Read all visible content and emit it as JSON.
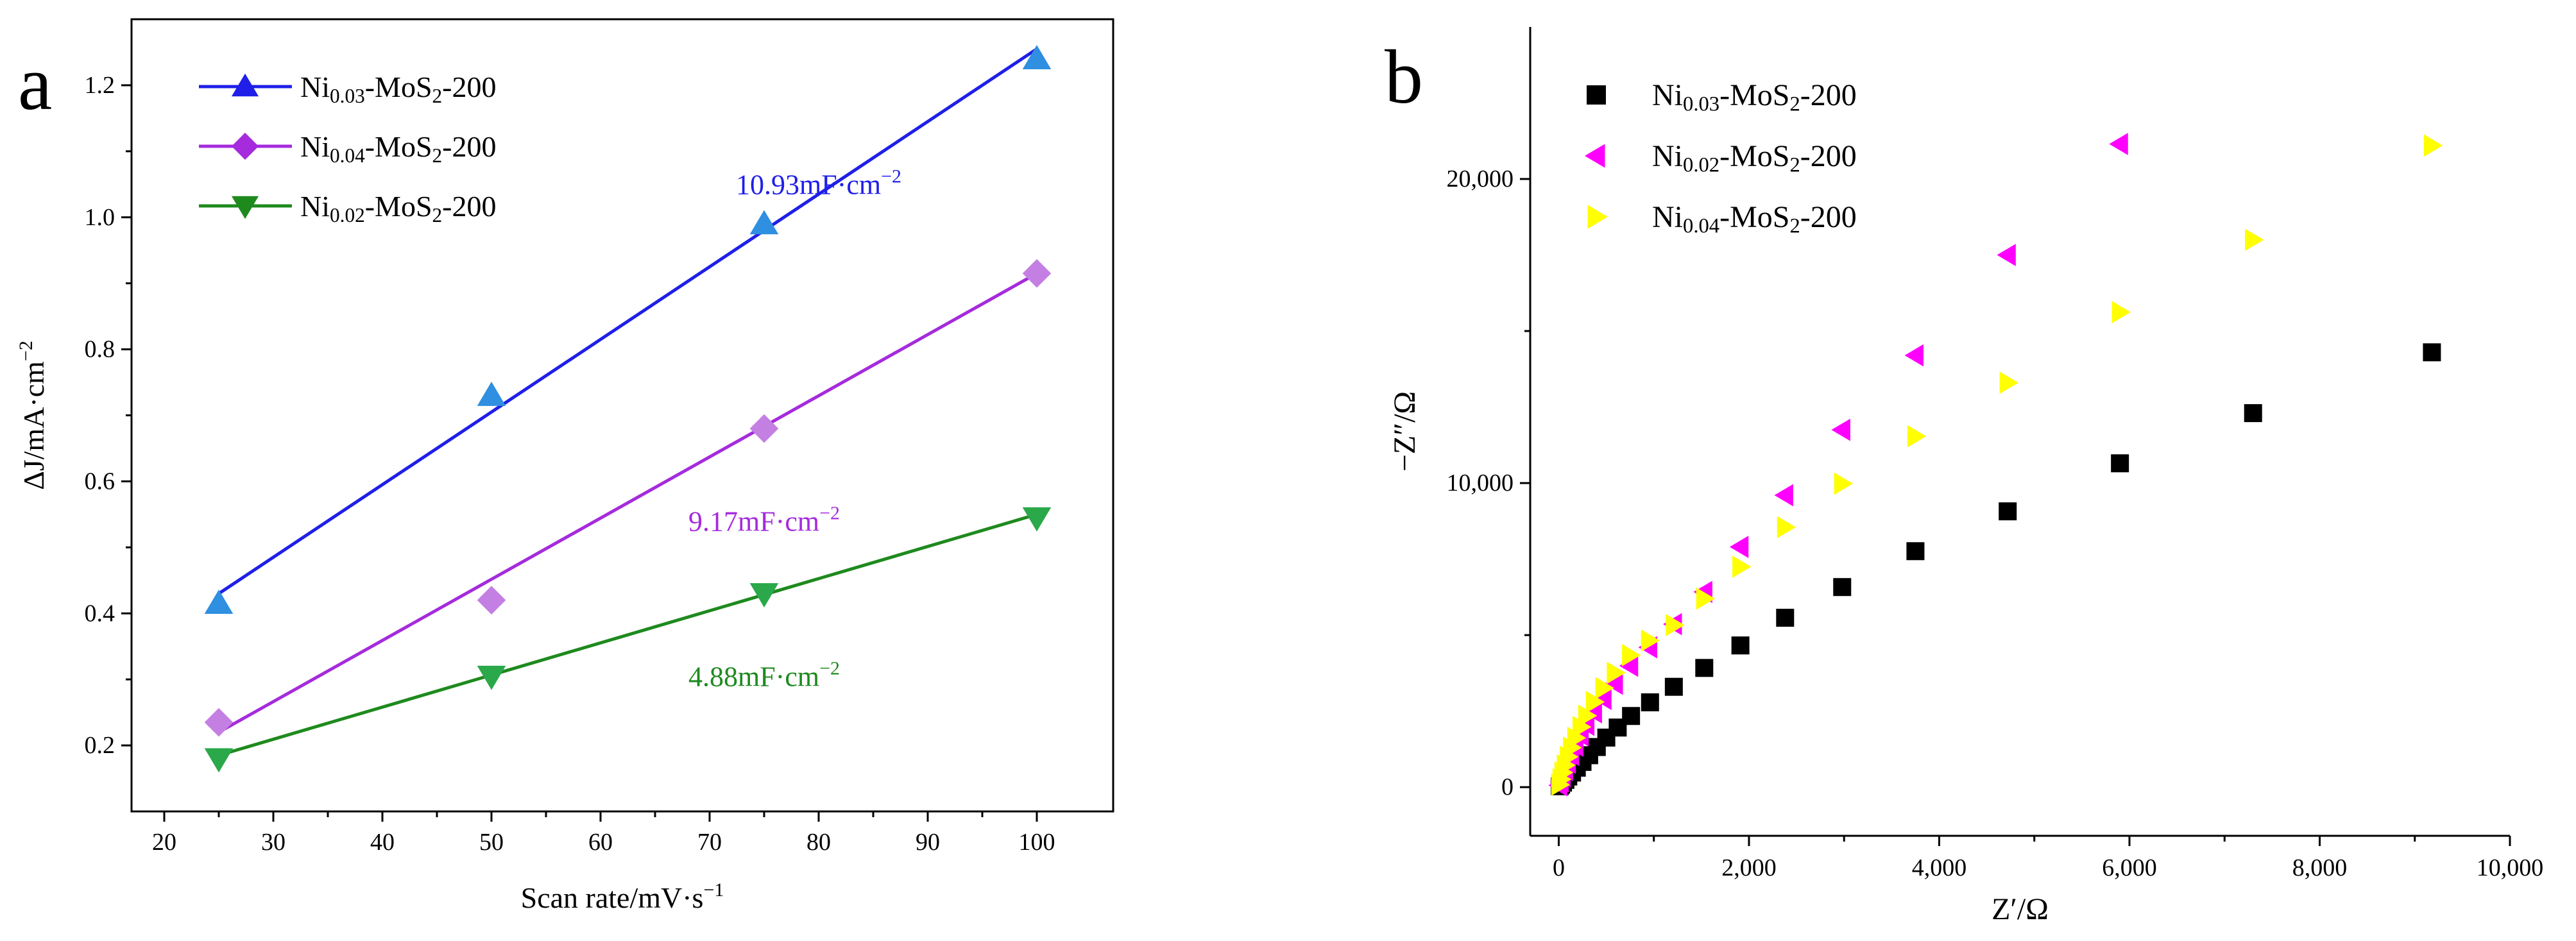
{
  "chart_data": [
    {
      "panel_label": "a",
      "type": "scatter",
      "xlabel": "Scan rate/mV·s",
      "xlabel_sup": "−1",
      "ylabel": "ΔJ/mA·cm",
      "ylabel_sup": "−2",
      "xlim": [
        17,
        107
      ],
      "ylim": [
        0.1,
        1.3
      ],
      "xticks": [
        20,
        30,
        40,
        50,
        60,
        70,
        80,
        90,
        100
      ],
      "yticks": [
        0.2,
        0.4,
        0.6,
        0.8,
        1.0,
        1.2
      ],
      "ytick_labels": [
        "0.2",
        "0.4",
        "0.6",
        "0.8",
        "1.0",
        "1.2"
      ],
      "legend_position": "top-left",
      "series": [
        {
          "name": "Ni0.03-MoS2-200",
          "legend": {
            "base": "Ni",
            "sub1": "0.03",
            "mid": "-MoS",
            "sub2": "2",
            "tail": "-200"
          },
          "marker": "triangle-up",
          "line_color": "#1f1fe8",
          "marker_color": "#2f8fe0",
          "x": [
            25,
            50,
            75,
            100
          ],
          "y": [
            0.415,
            0.73,
            0.99,
            1.24
          ],
          "fit": {
            "x": [
              25,
              100
            ],
            "y": [
              0.43,
              1.255
            ]
          },
          "annotation": "10.93mF·cm",
          "annotation_sup": "−2",
          "annotation_anchor": [
            80,
            1.035
          ]
        },
        {
          "name": "Ni0.04-MoS2-200",
          "legend": {
            "base": "Ni",
            "sub1": "0.04",
            "mid": "-MoS",
            "sub2": "2",
            "tail": "-200"
          },
          "marker": "diamond",
          "line_color": "#a52bdc",
          "marker_color": "#c47fe3",
          "x": [
            25,
            50,
            75,
            100
          ],
          "y": [
            0.235,
            0.42,
            0.68,
            0.915
          ],
          "fit": {
            "x": [
              25,
              100
            ],
            "y": [
              0.22,
              0.915
            ]
          },
          "annotation": "9.17mF·cm",
          "annotation_sup": "−2",
          "annotation_anchor": [
            75,
            0.525
          ]
        },
        {
          "name": "Ni0.02-MoS2-200",
          "legend": {
            "base": "Ni",
            "sub1": "0.02",
            "mid": "-MoS",
            "sub2": "2",
            "tail": "-200"
          },
          "marker": "triangle-down",
          "line_color": "#1e8a1e",
          "marker_color": "#2aa84a",
          "x": [
            25,
            50,
            75,
            100
          ],
          "y": [
            0.18,
            0.305,
            0.43,
            0.545
          ],
          "fit": {
            "x": [
              25,
              100
            ],
            "y": [
              0.185,
              0.55
            ]
          },
          "annotation": "4.88mF·cm",
          "annotation_sup": "−2",
          "annotation_anchor": [
            75,
            0.29
          ]
        }
      ]
    },
    {
      "panel_label": "b",
      "type": "scatter",
      "xlabel": "Z′/Ω",
      "ylabel": "−Z″/Ω",
      "xlim": [
        -300,
        10000
      ],
      "ylim": [
        -1600,
        25000
      ],
      "xticks": [
        0,
        2000,
        4000,
        6000,
        8000,
        10000
      ],
      "xtick_labels": [
        "0",
        "2,000",
        "4,000",
        "6,000",
        "8,000",
        "10,000"
      ],
      "yticks": [
        0,
        10000,
        20000
      ],
      "ytick_labels": [
        "0",
        "10,000",
        "20,000"
      ],
      "legend_position": "top-left",
      "series": [
        {
          "name": "Ni0.03-MoS2-200",
          "legend": {
            "base": "Ni",
            "sub1": "0.03",
            "mid": "-MoS",
            "sub2": "2",
            "tail": "-200"
          },
          "marker": "square",
          "marker_color": "#000000",
          "x": [
            10,
            25,
            45,
            70,
            100,
            140,
            190,
            250,
            320,
            400,
            500,
            620,
            760,
            960,
            1210,
            1530,
            1910,
            2380,
            2980,
            3750,
            4720,
            5900,
            7300,
            9180
          ],
          "y": [
            30,
            80,
            150,
            240,
            350,
            480,
            640,
            830,
            1050,
            1320,
            1630,
            1960,
            2340,
            2790,
            3300,
            3920,
            4660,
            5570,
            6580,
            7760,
            9070,
            10650,
            12300,
            14300
          ]
        },
        {
          "name": "Ni0.02-MoS2-200",
          "legend": {
            "base": "Ni",
            "sub1": "0.02",
            "mid": "-MoS",
            "sub2": "2",
            "tail": "-200"
          },
          "marker": "triangle-left",
          "marker_color": "#ff00ff",
          "x": [
            5,
            20,
            40,
            65,
            95,
            130,
            175,
            230,
            290,
            370,
            470,
            590,
            750,
            950,
            1210,
            1530,
            1910,
            2380,
            2980,
            3750,
            4720,
            5900
          ],
          "y": [
            60,
            190,
            360,
            560,
            800,
            1060,
            1360,
            1700,
            2050,
            2460,
            2900,
            3400,
            3990,
            4600,
            5360,
            6420,
            7900,
            9600,
            11750,
            14200,
            17500,
            21150
          ]
        },
        {
          "name": "Ni0.04-MoS2-200",
          "legend": {
            "base": "Ni",
            "sub1": "0.04",
            "mid": "-MoS",
            "sub2": "2",
            "tail": "-200"
          },
          "marker": "triangle-right",
          "marker_color": "#ffff00",
          "x": [
            5,
            20,
            40,
            65,
            95,
            130,
            175,
            230,
            290,
            370,
            470,
            590,
            750,
            950,
            1210,
            1530,
            1910,
            2380,
            2980,
            3750,
            4720,
            5900,
            7300,
            9180
          ],
          "y": [
            80,
            260,
            480,
            720,
            1000,
            1300,
            1620,
            1980,
            2350,
            2800,
            3260,
            3760,
            4340,
            4820,
            5330,
            6200,
            7250,
            8550,
            9980,
            11540,
            13300,
            15620,
            18000,
            21100
          ]
        }
      ]
    }
  ]
}
